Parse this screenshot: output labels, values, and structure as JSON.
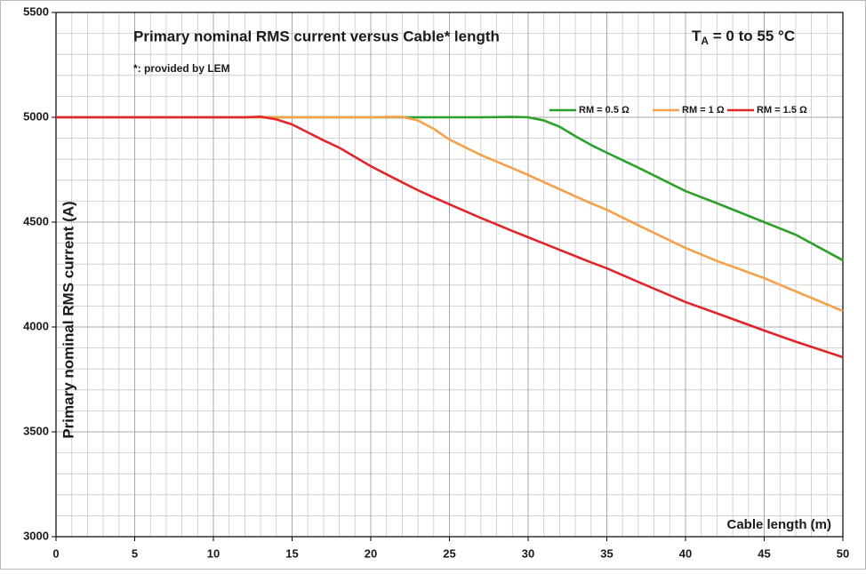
{
  "chart_data": {
    "type": "line",
    "title": "Primary nominal RMS current versus Cable* length",
    "subtitle": "*: provided by LEM",
    "condition": {
      "main": "T",
      "sub": "A",
      "rest": " = 0 to 55 °C"
    },
    "xlabel": "Cable  length (m)",
    "ylabel": "Primary nominal RMS current  (A)",
    "x": [
      0,
      10,
      12,
      13,
      14,
      15,
      16,
      17,
      18,
      20,
      21,
      22,
      23,
      24,
      25,
      27,
      29,
      30,
      31,
      32,
      33,
      34,
      35,
      37,
      40,
      42,
      45,
      47,
      50
    ],
    "series": [
      {
        "name": "RM = 0.5 Ω",
        "color": "#2ca02c",
        "values": [
          5000,
          5000,
          5000,
          5000,
          5000,
          5000,
          5000,
          5000,
          5000,
          5000,
          5000,
          5000,
          5000,
          5000,
          5000,
          5000,
          5002,
          5000,
          4985,
          4955,
          4910,
          4868,
          4831,
          4760,
          4648,
          4590,
          4500,
          4440,
          4318
        ]
      },
      {
        "name": "RM = 1 Ω",
        "color": "#f5a04a",
        "values": [
          5000,
          5000,
          5000,
          5000,
          5000,
          5000,
          5000,
          5000,
          5000,
          5000,
          5002,
          5002,
          4985,
          4945,
          4894,
          4820,
          4757,
          4725,
          4691,
          4657,
          4623,
          4590,
          4559,
          4485,
          4377,
          4315,
          4233,
          4170,
          4076
        ]
      },
      {
        "name": "RM = 1.5 Ω",
        "color": "#e0262b",
        "values": [
          5000,
          5000,
          5000,
          5003,
          4990,
          4966,
          4928,
          4890,
          4855,
          4767,
          4728,
          4690,
          4652,
          4618,
          4585,
          4520,
          4458,
          4428,
          4398,
          4368,
          4338,
          4308,
          4280,
          4215,
          4119,
          4065,
          3983,
          3930,
          3856
        ]
      }
    ],
    "xlim": [
      0,
      50
    ],
    "ylim": [
      3000,
      5500
    ],
    "xticks": [
      0,
      5,
      10,
      15,
      20,
      25,
      30,
      35,
      40,
      45,
      50
    ],
    "yticks": [
      3000,
      3500,
      4000,
      4500,
      5000,
      5500
    ],
    "grid": true,
    "minor_grid": {
      "x": 1,
      "y": 100
    },
    "legend": "upper right"
  }
}
